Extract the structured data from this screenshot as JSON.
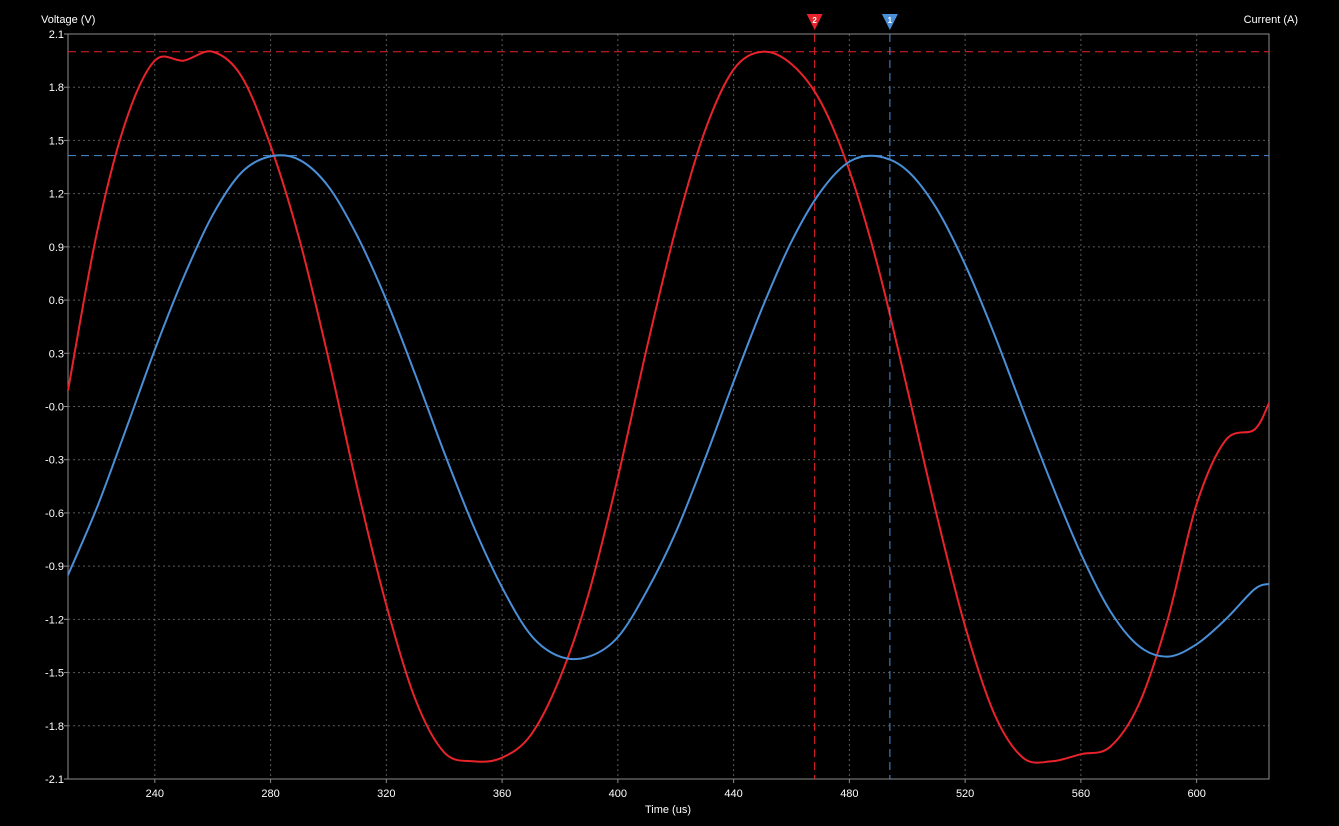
{
  "colors": {
    "background": "#000000",
    "grid": "#5a5a5a",
    "frame": "#8c8c8c",
    "text": "#ffffff",
    "voltage": "#e8232b",
    "current": "#4a8fd8"
  },
  "chart_data": {
    "type": "line",
    "title": "",
    "xlabel": "Time (us)",
    "ylabel": "Voltage (V)",
    "ylabel_right": "Current (A)",
    "xlim": [
      210,
      625
    ],
    "ylim": [
      -2.1,
      2.1
    ],
    "x_ticks": [
      "240",
      "280",
      "320",
      "360",
      "400",
      "440",
      "480",
      "520",
      "560",
      "600"
    ],
    "x_tick_values": [
      240,
      280,
      320,
      360,
      400,
      440,
      480,
      520,
      560,
      600
    ],
    "y_ticks": [
      "2.1",
      "1.8",
      "1.5",
      "1.2",
      "0.9",
      "0.6",
      "0.3",
      "-0.0",
      "-0.3",
      "-0.6",
      "-0.9",
      "-1.2",
      "-1.5",
      "-1.8",
      "-2.1"
    ],
    "y_tick_values": [
      2.1,
      1.8,
      1.5,
      1.2,
      0.9,
      0.6,
      0.3,
      0.0,
      -0.3,
      -0.6,
      -0.9,
      -1.2,
      -1.5,
      -1.8,
      -2.1
    ],
    "grid": true,
    "x": [
      210,
      220,
      230,
      240,
      250,
      260,
      270,
      280,
      290,
      300,
      310,
      320,
      330,
      340,
      350,
      360,
      370,
      380,
      390,
      400,
      410,
      420,
      430,
      440,
      450,
      460,
      470,
      480,
      490,
      500,
      510,
      520,
      530,
      540,
      550,
      560,
      570,
      580,
      590,
      600,
      610,
      620,
      625
    ],
    "series": [
      {
        "color": "#e8232b",
        "values": [
          0.09,
          0.98,
          1.61,
          1.95,
          1.95,
          2.0,
          1.86,
          1.47,
          0.94,
          0.27,
          -0.46,
          -1.12,
          -1.65,
          -1.95,
          -2.0,
          -1.98,
          -1.85,
          -1.53,
          -1.05,
          -0.4,
          0.33,
          1.0,
          1.55,
          1.9,
          2.0,
          1.93,
          1.72,
          1.33,
          0.78,
          0.1,
          -0.6,
          -1.24,
          -1.73,
          -1.98,
          -2.0,
          -1.96,
          -1.92,
          -1.68,
          -1.2,
          -0.55,
          -0.19,
          -0.13,
          0.02
        ]
      },
      {
        "color": "#4a8fd8",
        "values": [
          -0.95,
          -0.57,
          -0.13,
          0.32,
          0.73,
          1.08,
          1.32,
          1.41,
          1.39,
          1.24,
          0.96,
          0.6,
          0.18,
          -0.26,
          -0.67,
          -1.02,
          -1.29,
          -1.41,
          -1.41,
          -1.3,
          -1.04,
          -0.71,
          -0.3,
          0.14,
          0.56,
          0.93,
          1.21,
          1.38,
          1.41,
          1.33,
          1.12,
          0.8,
          0.41,
          -0.02,
          -0.44,
          -0.83,
          -1.15,
          -1.35,
          -1.41,
          -1.34,
          -1.2,
          -1.03,
          -1.0
        ]
      }
    ],
    "cursors": [
      {
        "label": "2",
        "x": 468,
        "level": 2.0,
        "color": "#e8232b"
      },
      {
        "label": "1",
        "x": 494,
        "level": 1.414,
        "color": "#4a8fd8"
      }
    ]
  }
}
